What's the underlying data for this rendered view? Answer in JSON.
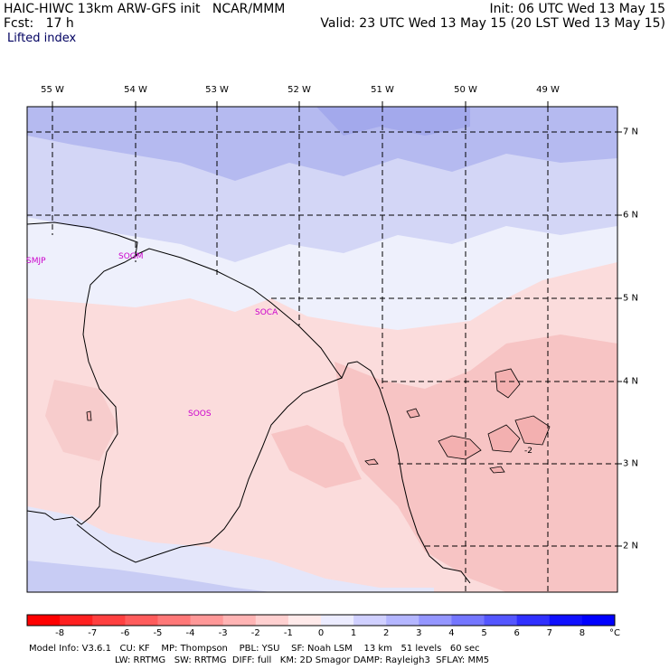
{
  "header": {
    "title": "HAIC-HIWC 13km ARW-GFS init   NCAR/MMM",
    "forecast": "Fcst:   17 h",
    "init": "Init: 06 UTC Wed 13 May 15",
    "valid": "Valid: 23 UTC Wed 13 May 15 (20 LST Wed 13 May 15)",
    "field": "Lifted index"
  },
  "map": {
    "lon_labels": [
      "55 W",
      "54 W",
      "53 W",
      "52 W",
      "51 W",
      "50 W",
      "49 W"
    ],
    "lat_labels": [
      "7 N",
      "6 N",
      "5 N",
      "4 N",
      "3 N",
      "2 N"
    ],
    "stations": [
      "SMJP",
      "SOGM",
      "SOCA",
      "SOOS"
    ],
    "contour_label": "-2",
    "colors": {
      "negative": "#f0a0a0",
      "positive": "#a8aef0",
      "border": "#000000",
      "station": "#cc00cc"
    }
  },
  "colorbar": {
    "ticks": [
      "-8",
      "-7",
      "-6",
      "-5",
      "-4",
      "-3",
      "-2",
      "-1",
      "0",
      "1",
      "2",
      "3",
      "4",
      "5",
      "6",
      "7",
      "8"
    ],
    "unit": "°C",
    "colors": [
      "#ff0000",
      "#ff2020",
      "#ff4040",
      "#ff5c5c",
      "#ff7878",
      "#ff9898",
      "#ffb4b4",
      "#ffd0d0",
      "#ffeaea",
      "#ececff",
      "#d0d0ff",
      "#b4b6ff",
      "#9496ff",
      "#7476ff",
      "#5456ff",
      "#3030ff",
      "#1010ff",
      "#0000ff"
    ]
  },
  "footer": {
    "line1": "Model Info: V3.6.1   CU: KF    MP: Thompson    PBL: YSU    SF: Noah LSM    13 km   51 levels   60 sec",
    "line2": "LW: RRTMG   SW: RRTMG  DIFF: full   KM: 2D Smagor DAMP: Rayleigh3  SFLAY: MM5"
  }
}
